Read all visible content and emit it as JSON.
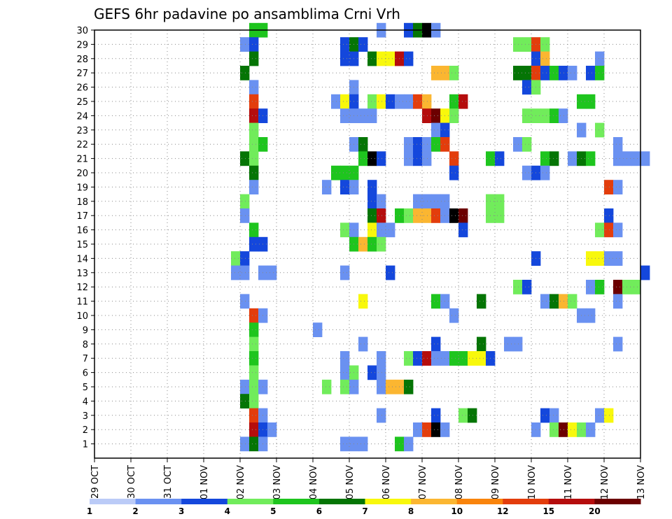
{
  "chart_data": {
    "type": "heatmap",
    "title": "GEFS 6hr padavine po ansamblima Crni Vrh",
    "xlabel": "",
    "ylabel": "",
    "x_ticks": [
      "29 OCT",
      "30 OCT",
      "31 OCT",
      "01 NOV",
      "02 NOV",
      "03 NOV",
      "04 NOV",
      "05 NOV",
      "06 NOV",
      "07 NOV",
      "08 NOV",
      "09 NOV",
      "10 NOV",
      "11 NOV",
      "12 NOV",
      "13 NOV"
    ],
    "y_ticks": [
      1,
      2,
      3,
      4,
      5,
      6,
      7,
      8,
      9,
      10,
      11,
      12,
      13,
      14,
      15,
      16,
      17,
      18,
      19,
      20,
      21,
      22,
      23,
      24,
      25,
      26,
      27,
      28,
      29,
      30
    ],
    "x_range": [
      0,
      15
    ],
    "y_range": [
      0,
      30
    ],
    "time_step_days": 0.25,
    "grid": true,
    "colorbar": {
      "labels": [
        "1",
        "2",
        "3",
        "4",
        "5",
        "6",
        "7",
        "8",
        "10",
        "12",
        "15",
        "20"
      ],
      "colors": [
        "#bbcbf7",
        "#6a91f1",
        "#1447dc",
        "#71ec5b",
        "#1ec51e",
        "#057505",
        "#f8f80c",
        "#fbb631",
        "#f9840c",
        "#e33d0c",
        "#b50d0d",
        "#6c0000"
      ]
    },
    "cells": [
      [
        30,
        4.25,
        4
      ],
      [
        30,
        4.5,
        4
      ],
      [
        30,
        7.75,
        1
      ],
      [
        30,
        8.5,
        2
      ],
      [
        30,
        8.75,
        5
      ],
      [
        30,
        9,
        12
      ],
      [
        30,
        9.25,
        1
      ],
      [
        29,
        4,
        1
      ],
      [
        29,
        4.25,
        2
      ],
      [
        29,
        6.75,
        2
      ],
      [
        29,
        7,
        5
      ],
      [
        29,
        7.25,
        2
      ],
      [
        29,
        11.5,
        3
      ],
      [
        29,
        11.75,
        3
      ],
      [
        29,
        12,
        9
      ],
      [
        29,
        12.25,
        3
      ],
      [
        28,
        4.25,
        5
      ],
      [
        28,
        6.75,
        2
      ],
      [
        28,
        7,
        2
      ],
      [
        28,
        7.5,
        5
      ],
      [
        28,
        7.75,
        6
      ],
      [
        28,
        8,
        6
      ],
      [
        28,
        8.25,
        10
      ],
      [
        28,
        8.5,
        2
      ],
      [
        28,
        12,
        2
      ],
      [
        28,
        12.25,
        7
      ],
      [
        28,
        13.75,
        1
      ],
      [
        27,
        4,
        5
      ],
      [
        27,
        9.25,
        7
      ],
      [
        27,
        9.5,
        7
      ],
      [
        27,
        9.75,
        3
      ],
      [
        27,
        11.5,
        5
      ],
      [
        27,
        11.75,
        5
      ],
      [
        27,
        12,
        9
      ],
      [
        27,
        12.25,
        2
      ],
      [
        27,
        12.5,
        4
      ],
      [
        27,
        12.75,
        2
      ],
      [
        27,
        13,
        1
      ],
      [
        27,
        13.5,
        2
      ],
      [
        27,
        13.75,
        4
      ],
      [
        26,
        4.25,
        1
      ],
      [
        26,
        7,
        1
      ],
      [
        26,
        11.75,
        2
      ],
      [
        26,
        12,
        3
      ],
      [
        25,
        4.25,
        9
      ],
      [
        25,
        6.5,
        1
      ],
      [
        25,
        6.75,
        6
      ],
      [
        25,
        7,
        2
      ],
      [
        25,
        7.5,
        3
      ],
      [
        25,
        7.75,
        6
      ],
      [
        25,
        8,
        2
      ],
      [
        25,
        8.25,
        1
      ],
      [
        25,
        8.5,
        1
      ],
      [
        25,
        8.75,
        9
      ],
      [
        25,
        9,
        7
      ],
      [
        25,
        9.75,
        4
      ],
      [
        25,
        10,
        10
      ],
      [
        25,
        13.25,
        4
      ],
      [
        25,
        13.5,
        4
      ],
      [
        24,
        4.25,
        10
      ],
      [
        24,
        4.5,
        2
      ],
      [
        24,
        6.75,
        1
      ],
      [
        24,
        7,
        1
      ],
      [
        24,
        7.25,
        1
      ],
      [
        24,
        7.5,
        1
      ],
      [
        24,
        9,
        10
      ],
      [
        24,
        9.25,
        11
      ],
      [
        24,
        9.5,
        6
      ],
      [
        24,
        9.75,
        3
      ],
      [
        24,
        11.75,
        3
      ],
      [
        24,
        12,
        3
      ],
      [
        24,
        12.25,
        3
      ],
      [
        24,
        12.5,
        4
      ],
      [
        24,
        12.75,
        1
      ],
      [
        23,
        4.25,
        3
      ],
      [
        23,
        9.25,
        1
      ],
      [
        23,
        9.5,
        2
      ],
      [
        23,
        13.25,
        1
      ],
      [
        23,
        13.75,
        3
      ],
      [
        22,
        4.25,
        3
      ],
      [
        22,
        4.5,
        4
      ],
      [
        22,
        7,
        1
      ],
      [
        22,
        7.25,
        5
      ],
      [
        22,
        8.5,
        1
      ],
      [
        22,
        8.75,
        2
      ],
      [
        22,
        9,
        1
      ],
      [
        22,
        9.25,
        4
      ],
      [
        22,
        9.5,
        9
      ],
      [
        22,
        11.5,
        1
      ],
      [
        22,
        11.75,
        3
      ],
      [
        22,
        14.25,
        1
      ],
      [
        21,
        4,
        5
      ],
      [
        21,
        4.25,
        3
      ],
      [
        21,
        7.25,
        4
      ],
      [
        21,
        7.5,
        12
      ],
      [
        21,
        7.75,
        2
      ],
      [
        21,
        8.5,
        1
      ],
      [
        21,
        8.75,
        2
      ],
      [
        21,
        9,
        1
      ],
      [
        21,
        9.75,
        9
      ],
      [
        21,
        10.75,
        4
      ],
      [
        21,
        11,
        2
      ],
      [
        21,
        12.25,
        4
      ],
      [
        21,
        12.5,
        5
      ],
      [
        21,
        13,
        1
      ],
      [
        21,
        13.25,
        5
      ],
      [
        21,
        13.5,
        4
      ],
      [
        21,
        14.25,
        1
      ],
      [
        21,
        14.5,
        1
      ],
      [
        21,
        14.75,
        1
      ],
      [
        21,
        15,
        1
      ],
      [
        20,
        4.25,
        5
      ],
      [
        20,
        6.5,
        4
      ],
      [
        20,
        6.75,
        4
      ],
      [
        20,
        7,
        4
      ],
      [
        20,
        9.75,
        2
      ],
      [
        20,
        11.75,
        1
      ],
      [
        20,
        12,
        2
      ],
      [
        20,
        12.25,
        1
      ],
      [
        19,
        4.25,
        1
      ],
      [
        19,
        6.25,
        1
      ],
      [
        19,
        6.75,
        2
      ],
      [
        19,
        7,
        1
      ],
      [
        19,
        7.5,
        2
      ],
      [
        19,
        14,
        9
      ],
      [
        19,
        14.25,
        1
      ],
      [
        18,
        4,
        3
      ],
      [
        18,
        7.5,
        2
      ],
      [
        18,
        7.75,
        1
      ],
      [
        18,
        8.75,
        1
      ],
      [
        18,
        9,
        1
      ],
      [
        18,
        9.25,
        1
      ],
      [
        18,
        9.5,
        1
      ],
      [
        18,
        10.75,
        3
      ],
      [
        18,
        11,
        3
      ],
      [
        17,
        4,
        1
      ],
      [
        17,
        7.5,
        5
      ],
      [
        17,
        7.75,
        10
      ],
      [
        17,
        8.25,
        4
      ],
      [
        17,
        8.5,
        3
      ],
      [
        17,
        8.75,
        7
      ],
      [
        17,
        9,
        7
      ],
      [
        17,
        9.25,
        9
      ],
      [
        17,
        9.5,
        1
      ],
      [
        17,
        9.75,
        12
      ],
      [
        17,
        10,
        11
      ],
      [
        17,
        10.75,
        3
      ],
      [
        17,
        11,
        3
      ],
      [
        17,
        14,
        2
      ],
      [
        16,
        4.25,
        4
      ],
      [
        16,
        6.75,
        3
      ],
      [
        16,
        7,
        1
      ],
      [
        16,
        7.5,
        6
      ],
      [
        16,
        7.75,
        1
      ],
      [
        16,
        8,
        1
      ],
      [
        16,
        10,
        2
      ],
      [
        16,
        13.75,
        3
      ],
      [
        16,
        14,
        9
      ],
      [
        16,
        14.25,
        1
      ],
      [
        15,
        4.25,
        2
      ],
      [
        15,
        4.5,
        2
      ],
      [
        15,
        7,
        4
      ],
      [
        15,
        7.25,
        7
      ],
      [
        15,
        7.5,
        4
      ],
      [
        15,
        7.75,
        3
      ],
      [
        14,
        3.75,
        3
      ],
      [
        14,
        4,
        2
      ],
      [
        14,
        12,
        2
      ],
      [
        14,
        13.5,
        6
      ],
      [
        14,
        13.75,
        6
      ],
      [
        14,
        14,
        1
      ],
      [
        14,
        14.25,
        1
      ],
      [
        13,
        3.75,
        1
      ],
      [
        13,
        4,
        1
      ],
      [
        13,
        4.5,
        1
      ],
      [
        13,
        4.75,
        1
      ],
      [
        13,
        6.75,
        1
      ],
      [
        13,
        8,
        2
      ],
      [
        13,
        15,
        2
      ],
      [
        12,
        11.5,
        3
      ],
      [
        12,
        11.75,
        2
      ],
      [
        12,
        13.5,
        1
      ],
      [
        12,
        13.75,
        4
      ],
      [
        12,
        14.25,
        11
      ],
      [
        12,
        14.5,
        3
      ],
      [
        12,
        14.75,
        3
      ],
      [
        11,
        4,
        1
      ],
      [
        11,
        7.25,
        6
      ],
      [
        11,
        9.25,
        4
      ],
      [
        11,
        9.5,
        1
      ],
      [
        11,
        10.5,
        5
      ],
      [
        11,
        12.25,
        1
      ],
      [
        11,
        12.5,
        5
      ],
      [
        11,
        12.75,
        7
      ],
      [
        11,
        13,
        3
      ],
      [
        11,
        14.25,
        1
      ],
      [
        10,
        4.25,
        9
      ],
      [
        10,
        4.5,
        1
      ],
      [
        10,
        9.75,
        1
      ],
      [
        10,
        13.25,
        1
      ],
      [
        10,
        13.5,
        1
      ],
      [
        9,
        4.25,
        4
      ],
      [
        9,
        6,
        1
      ],
      [
        8,
        4.25,
        3
      ],
      [
        8,
        7.25,
        1
      ],
      [
        8,
        9.25,
        2
      ],
      [
        8,
        10.5,
        5
      ],
      [
        8,
        11.25,
        1
      ],
      [
        8,
        11.5,
        1
      ],
      [
        8,
        14.25,
        1
      ],
      [
        7,
        4.25,
        4
      ],
      [
        7,
        6.75,
        1
      ],
      [
        7,
        7.75,
        1
      ],
      [
        7,
        8.5,
        3
      ],
      [
        7,
        8.75,
        2
      ],
      [
        7,
        9,
        10
      ],
      [
        7,
        9.25,
        1
      ],
      [
        7,
        9.5,
        1
      ],
      [
        7,
        9.75,
        4
      ],
      [
        7,
        10,
        4
      ],
      [
        7,
        10.25,
        6
      ],
      [
        7,
        10.5,
        6
      ],
      [
        7,
        10.75,
        2
      ],
      [
        6,
        4.25,
        3
      ],
      [
        6,
        6.75,
        1
      ],
      [
        6,
        7,
        3
      ],
      [
        6,
        7.5,
        2
      ],
      [
        6,
        7.75,
        1
      ],
      [
        5,
        4,
        1
      ],
      [
        5,
        4.25,
        3
      ],
      [
        5,
        4.5,
        1
      ],
      [
        5,
        6.25,
        3
      ],
      [
        5,
        6.75,
        3
      ],
      [
        5,
        7,
        1
      ],
      [
        5,
        7.75,
        1
      ],
      [
        5,
        8,
        7
      ],
      [
        5,
        8.25,
        7
      ],
      [
        5,
        8.5,
        5
      ],
      [
        4,
        4,
        5
      ],
      [
        4,
        4.25,
        3
      ],
      [
        3,
        4.25,
        9
      ],
      [
        3,
        4.5,
        1
      ],
      [
        3,
        7.75,
        1
      ],
      [
        3,
        9.25,
        2
      ],
      [
        3,
        10,
        3
      ],
      [
        3,
        10.25,
        5
      ],
      [
        3,
        12.25,
        2
      ],
      [
        3,
        12.5,
        1
      ],
      [
        3,
        13.75,
        1
      ],
      [
        3,
        14,
        6
      ],
      [
        2,
        4.25,
        10
      ],
      [
        2,
        4.5,
        2
      ],
      [
        2,
        4.75,
        1
      ],
      [
        2,
        8.75,
        1
      ],
      [
        2,
        9,
        9
      ],
      [
        2,
        9.25,
        12
      ],
      [
        2,
        9.5,
        1
      ],
      [
        2,
        12,
        1
      ],
      [
        2,
        12.5,
        3
      ],
      [
        2,
        12.75,
        11
      ],
      [
        2,
        13,
        6
      ],
      [
        2,
        13.25,
        3
      ],
      [
        2,
        13.5,
        1
      ],
      [
        1,
        4,
        1
      ],
      [
        1,
        4.25,
        5
      ],
      [
        1,
        4.5,
        1
      ],
      [
        1,
        6.75,
        1
      ],
      [
        1,
        7,
        1
      ],
      [
        1,
        7.25,
        1
      ],
      [
        1,
        8.25,
        4
      ],
      [
        1,
        8.5,
        1
      ]
    ]
  }
}
